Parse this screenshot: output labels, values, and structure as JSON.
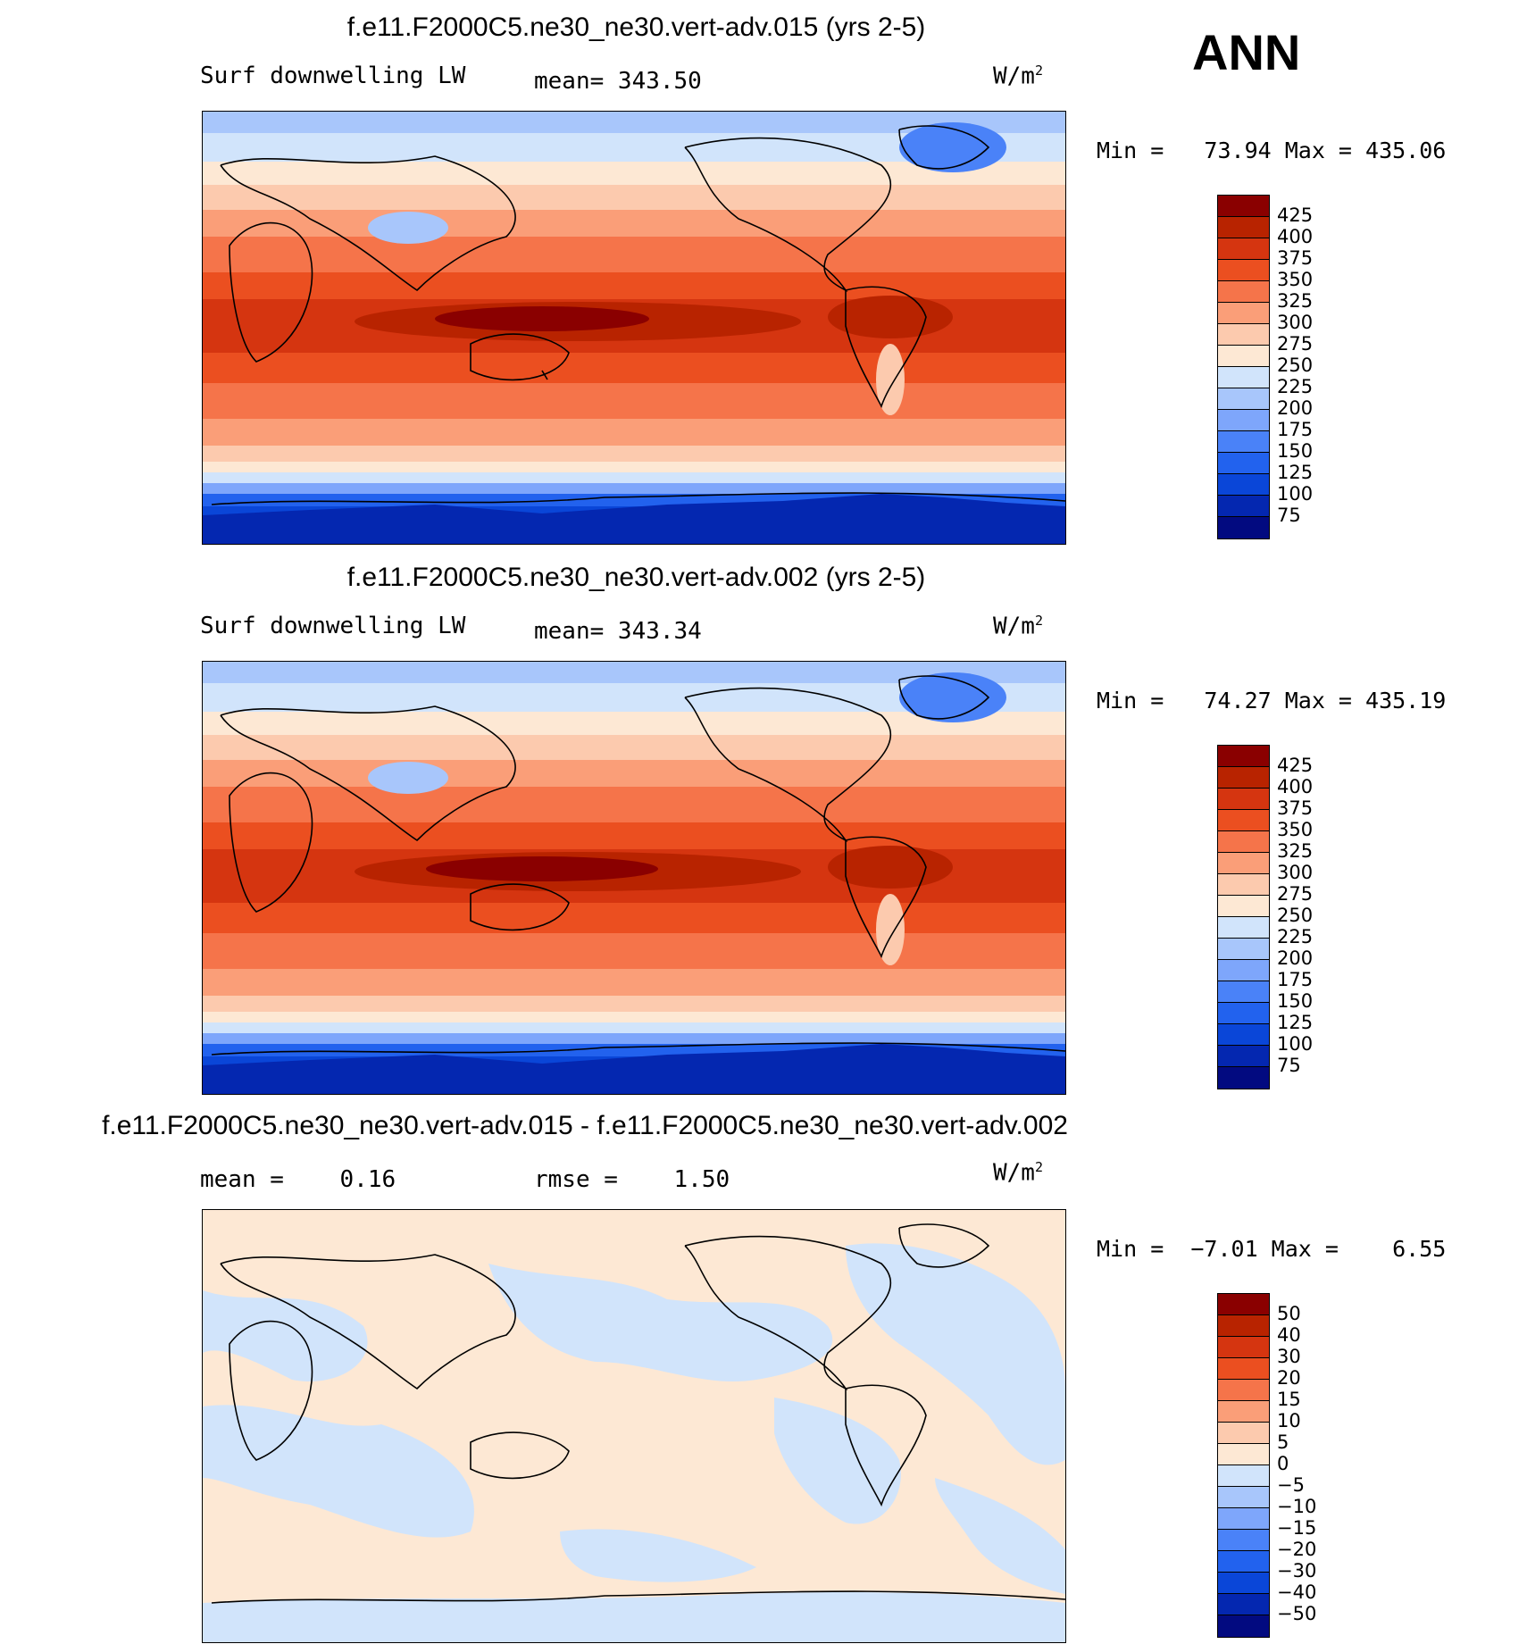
{
  "header": {
    "season": "ANN"
  },
  "panels": [
    {
      "title": "f.e11.F2000C5.ne30_ne30.vert-adv.015 (yrs 2-5)",
      "variable": "Surf downwelling LW",
      "mean_text": "mean= 343.50",
      "units": "W/m",
      "units_exp": "2",
      "minmax": "Min =   73.94 Max = 435.06",
      "colorbar_labels": [
        "425",
        "400",
        "375",
        "350",
        "325",
        "300",
        "275",
        "250",
        "225",
        "200",
        "175",
        "150",
        "125",
        "100",
        "75"
      ]
    },
    {
      "title": "f.e11.F2000C5.ne30_ne30.vert-adv.002 (yrs 2-5)",
      "variable": "Surf downwelling LW",
      "mean_text": "mean= 343.34",
      "units": "W/m",
      "units_exp": "2",
      "minmax": "Min =   74.27 Max = 435.19",
      "colorbar_labels": [
        "425",
        "400",
        "375",
        "350",
        "325",
        "300",
        "275",
        "250",
        "225",
        "200",
        "175",
        "150",
        "125",
        "100",
        "75"
      ]
    },
    {
      "title": "f.e11.F2000C5.ne30_ne30.vert-adv.015 - f.e11.F2000C5.ne30_ne30.vert-adv.002",
      "mean_text": "mean =    0.16",
      "rmse_text": "rmse =    1.50",
      "units": "W/m",
      "units_exp": "2",
      "minmax": "Min =  −7.01 Max =    6.55",
      "colorbar_labels": [
        "50",
        "40",
        "30",
        "20",
        "15",
        "10",
        "5",
        "0",
        "−5",
        "−10",
        "−15",
        "−20",
        "−30",
        "−40",
        "−50"
      ]
    }
  ],
  "chart_data": [
    {
      "type": "heatmap",
      "title": "f.e11.F2000C5.ne30_ne30.vert-adv.015 (yrs 2-5)",
      "variable": "Surf downwelling LW",
      "units": "W/m2",
      "mean": 343.5,
      "min": 73.94,
      "max": 435.06,
      "contour_levels": [
        75,
        100,
        125,
        150,
        175,
        200,
        225,
        250,
        275,
        300,
        325,
        350,
        375,
        400,
        425
      ],
      "colors": [
        "#020a80",
        "#0427b0",
        "#0a46d8",
        "#2262ee",
        "#4a82f8",
        "#7ea6fb",
        "#a8c6fb",
        "#d1e4fb",
        "#fde8d4",
        "#fccaae",
        "#fa9e78",
        "#f5744a",
        "#eb4f20",
        "#d53510",
        "#b82300",
        "#8a0000"
      ]
    },
    {
      "type": "heatmap",
      "title": "f.e11.F2000C5.ne30_ne30.vert-adv.002 (yrs 2-5)",
      "variable": "Surf downwelling LW",
      "units": "W/m2",
      "mean": 343.34,
      "min": 74.27,
      "max": 435.19,
      "contour_levels": [
        75,
        100,
        125,
        150,
        175,
        200,
        225,
        250,
        275,
        300,
        325,
        350,
        375,
        400,
        425
      ],
      "colors": [
        "#020a80",
        "#0427b0",
        "#0a46d8",
        "#2262ee",
        "#4a82f8",
        "#7ea6fb",
        "#a8c6fb",
        "#d1e4fb",
        "#fde8d4",
        "#fccaae",
        "#fa9e78",
        "#f5744a",
        "#eb4f20",
        "#d53510",
        "#b82300",
        "#8a0000"
      ]
    },
    {
      "type": "heatmap",
      "title": "f.e11.F2000C5.ne30_ne30.vert-adv.015 - f.e11.F2000C5.ne30_ne30.vert-adv.002",
      "units": "W/m2",
      "mean": 0.16,
      "rmse": 1.5,
      "min": -7.01,
      "max": 6.55,
      "contour_levels": [
        -50,
        -40,
        -30,
        -20,
        -15,
        -10,
        -5,
        0,
        5,
        10,
        15,
        20,
        30,
        40,
        50
      ],
      "colors": [
        "#020a80",
        "#0427b0",
        "#0a46d8",
        "#2262ee",
        "#4a82f8",
        "#7ea6fb",
        "#a8c6fb",
        "#d1e4fb",
        "#fde8d4",
        "#fccaae",
        "#fa9e78",
        "#f5744a",
        "#eb4f20",
        "#d53510",
        "#b82300",
        "#8a0000"
      ]
    }
  ]
}
